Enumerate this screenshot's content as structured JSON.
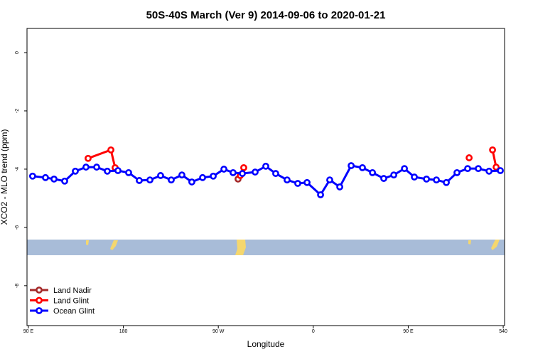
{
  "chart_data": {
    "type": "line",
    "title": "50S-40S March (Ver 9)   2014-09-06 to 2020-01-21",
    "x_label": "Longitude",
    "y_label": "XCO2 - MLO trend (ppm)",
    "xlim": [
      88.7,
      541.3
    ],
    "ylim": [
      -9.37,
      0.83
    ],
    "xticks": [
      {
        "value": 90,
        "label": "90 E"
      },
      180,
      {
        "value": 270,
        "label": "90 W"
      },
      {
        "value": 360,
        "label": "0"
      },
      {
        "value": 450,
        "label": "90 E"
      },
      540
    ],
    "yticks": [
      0,
      -2,
      -4,
      -6,
      -8
    ],
    "legend": "bottom-left",
    "series": [
      {
        "name": "Land Nadir",
        "color": "#a52a2a",
        "x": [
          288.7
        ],
        "values": [
          -4.34
        ]
      },
      {
        "name": "Land Glint",
        "color": "#ff0000",
        "x": [
          146.6,
          168.2,
          172.2,
          null,
          290.8,
          294.1,
          null,
          507.7,
          null,
          529.9,
          533.3
        ],
        "values": [
          -3.63,
          -3.34,
          -3.95,
          null,
          -4.22,
          -3.95,
          null,
          -3.61,
          null,
          -3.34,
          -3.93
        ]
      },
      {
        "name": "Ocean Glint",
        "color": "#0000ff",
        "x": [
          94.0,
          106.2,
          114.3,
          124.4,
          134.5,
          144.6,
          154.7,
          164.8,
          174.9,
          185.0,
          195.1,
          205.2,
          215.3,
          225.4,
          235.5,
          244.9,
          255.1,
          265.2,
          275.3,
          284.0,
          292.8,
          304.9,
          315.0,
          324.4,
          335.2,
          345.3,
          354.1,
          366.9,
          375.6,
          385.1,
          395.9,
          406.6,
          416.1,
          426.8,
          436.3,
          446.4,
          455.8,
          467.3,
          476.7,
          486.1,
          496.2,
          506.3,
          516.4,
          526.6,
          537.3
        ],
        "values": [
          -4.24,
          -4.29,
          -4.34,
          -4.41,
          -4.07,
          -3.93,
          -3.93,
          -4.07,
          -4.05,
          -4.12,
          -4.39,
          -4.37,
          -4.22,
          -4.37,
          -4.2,
          -4.44,
          -4.29,
          -4.24,
          -4.0,
          -4.12,
          -4.15,
          -4.1,
          -3.9,
          -4.15,
          -4.37,
          -4.49,
          -4.46,
          -4.88,
          -4.37,
          -4.61,
          -3.88,
          -3.95,
          -4.12,
          -4.32,
          -4.2,
          -3.98,
          -4.27,
          -4.34,
          -4.37,
          -4.46,
          -4.12,
          -3.98,
          -3.98,
          -4.07,
          -4.05
        ]
      }
    ]
  }
}
